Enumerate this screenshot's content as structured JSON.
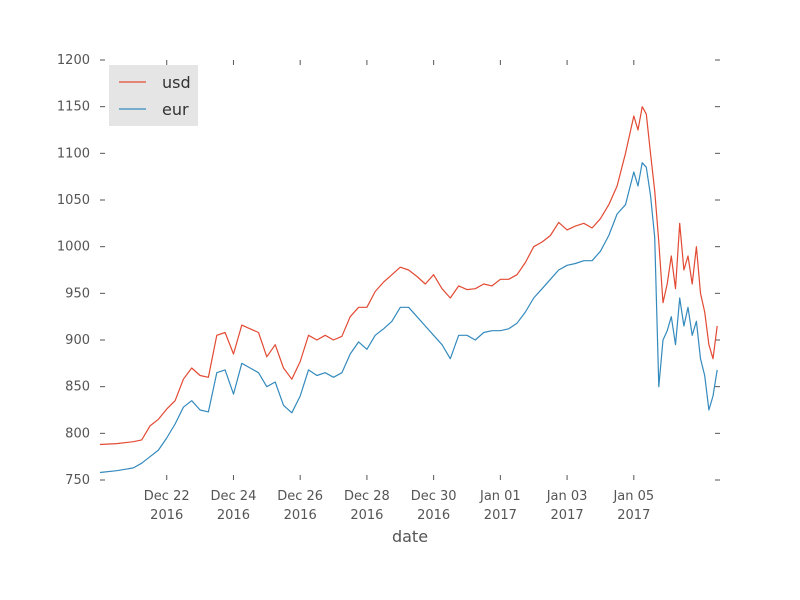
{
  "chart_data": {
    "type": "line",
    "title": "",
    "xlabel": "date",
    "ylabel": "",
    "x_range": [
      "2016-12-20",
      "2017-01-07T14:00"
    ],
    "ylim": [
      750,
      1200
    ],
    "yticks": [
      750,
      800,
      850,
      900,
      950,
      1000,
      1050,
      1100,
      1150,
      1200
    ],
    "xticks": [
      {
        "date": "2016-12-22",
        "label": "Dec 22",
        "sublabel": "2016"
      },
      {
        "date": "2016-12-24",
        "label": "Dec 24",
        "sublabel": "2016"
      },
      {
        "date": "2016-12-26",
        "label": "Dec 26",
        "sublabel": "2016"
      },
      {
        "date": "2016-12-28",
        "label": "Dec 28",
        "sublabel": "2016"
      },
      {
        "date": "2016-12-30",
        "label": "Dec 30",
        "sublabel": "2016"
      },
      {
        "date": "2017-01-01",
        "label": "Jan 01",
        "sublabel": "2017"
      },
      {
        "date": "2017-01-03",
        "label": "Jan 03",
        "sublabel": "2017"
      },
      {
        "date": "2017-01-05",
        "label": "Jan 05",
        "sublabel": "2017"
      }
    ],
    "grid": false,
    "legend_position": "top-left",
    "series": [
      {
        "name": "usd",
        "color": "#E24A33",
        "points": [
          [
            "2016-12-20T00:00",
            788
          ],
          [
            "2016-12-20T12:00",
            789
          ],
          [
            "2016-12-21T00:00",
            791
          ],
          [
            "2016-12-21T06:00",
            793
          ],
          [
            "2016-12-21T12:00",
            808
          ],
          [
            "2016-12-21T18:00",
            815
          ],
          [
            "2016-12-22T00:00",
            826
          ],
          [
            "2016-12-22T06:00",
            835
          ],
          [
            "2016-12-22T12:00",
            858
          ],
          [
            "2016-12-22T18:00",
            870
          ],
          [
            "2016-12-23T00:00",
            862
          ],
          [
            "2016-12-23T06:00",
            860
          ],
          [
            "2016-12-23T12:00",
            905
          ],
          [
            "2016-12-23T18:00",
            908
          ],
          [
            "2016-12-24T00:00",
            885
          ],
          [
            "2016-12-24T06:00",
            916
          ],
          [
            "2016-12-24T12:00",
            912
          ],
          [
            "2016-12-24T18:00",
            908
          ],
          [
            "2016-12-25T00:00",
            882
          ],
          [
            "2016-12-25T06:00",
            895
          ],
          [
            "2016-12-25T12:00",
            870
          ],
          [
            "2016-12-25T18:00",
            858
          ],
          [
            "2016-12-26T00:00",
            877
          ],
          [
            "2016-12-26T06:00",
            905
          ],
          [
            "2016-12-26T12:00",
            900
          ],
          [
            "2016-12-26T18:00",
            905
          ],
          [
            "2016-12-27T00:00",
            900
          ],
          [
            "2016-12-27T06:00",
            904
          ],
          [
            "2016-12-27T12:00",
            925
          ],
          [
            "2016-12-27T18:00",
            935
          ],
          [
            "2016-12-28T00:00",
            935
          ],
          [
            "2016-12-28T06:00",
            952
          ],
          [
            "2016-12-28T12:00",
            962
          ],
          [
            "2016-12-28T18:00",
            970
          ],
          [
            "2016-12-29T00:00",
            978
          ],
          [
            "2016-12-29T06:00",
            975
          ],
          [
            "2016-12-29T12:00",
            968
          ],
          [
            "2016-12-29T18:00",
            960
          ],
          [
            "2016-12-30T00:00",
            970
          ],
          [
            "2016-12-30T06:00",
            955
          ],
          [
            "2016-12-30T12:00",
            945
          ],
          [
            "2016-12-30T18:00",
            958
          ],
          [
            "2016-12-31T00:00",
            954
          ],
          [
            "2016-12-31T06:00",
            955
          ],
          [
            "2016-12-31T12:00",
            960
          ],
          [
            "2016-12-31T18:00",
            958
          ],
          [
            "2017-01-01T00:00",
            965
          ],
          [
            "2017-01-01T06:00",
            965
          ],
          [
            "2017-01-01T12:00",
            970
          ],
          [
            "2017-01-01T18:00",
            983
          ],
          [
            "2017-01-02T00:00",
            1000
          ],
          [
            "2017-01-02T06:00",
            1005
          ],
          [
            "2017-01-02T12:00",
            1012
          ],
          [
            "2017-01-02T18:00",
            1026
          ],
          [
            "2017-01-03T00:00",
            1018
          ],
          [
            "2017-01-03T06:00",
            1022
          ],
          [
            "2017-01-03T12:00",
            1025
          ],
          [
            "2017-01-03T18:00",
            1020
          ],
          [
            "2017-01-04T00:00",
            1030
          ],
          [
            "2017-01-04T06:00",
            1045
          ],
          [
            "2017-01-04T12:00",
            1065
          ],
          [
            "2017-01-04T18:00",
            1100
          ],
          [
            "2017-01-05T00:00",
            1140
          ],
          [
            "2017-01-05T03:00",
            1125
          ],
          [
            "2017-01-05T06:00",
            1150
          ],
          [
            "2017-01-05T09:00",
            1142
          ],
          [
            "2017-01-05T12:00",
            1100
          ],
          [
            "2017-01-05T15:00",
            1060
          ],
          [
            "2017-01-05T18:00",
            1005
          ],
          [
            "2017-01-05T21:00",
            940
          ],
          [
            "2017-01-06T00:00",
            960
          ],
          [
            "2017-01-06T03:00",
            990
          ],
          [
            "2017-01-06T06:00",
            955
          ],
          [
            "2017-01-06T09:00",
            1025
          ],
          [
            "2017-01-06T12:00",
            975
          ],
          [
            "2017-01-06T15:00",
            990
          ],
          [
            "2017-01-06T18:00",
            960
          ],
          [
            "2017-01-06T21:00",
            1000
          ],
          [
            "2017-01-07T00:00",
            950
          ],
          [
            "2017-01-07T03:00",
            930
          ],
          [
            "2017-01-07T06:00",
            895
          ],
          [
            "2017-01-07T09:00",
            880
          ],
          [
            "2017-01-07T12:00",
            915
          ]
        ]
      },
      {
        "name": "eur",
        "color": "#348ABD",
        "points": [
          [
            "2016-12-20T00:00",
            758
          ],
          [
            "2016-12-20T12:00",
            760
          ],
          [
            "2016-12-21T00:00",
            763
          ],
          [
            "2016-12-21T06:00",
            768
          ],
          [
            "2016-12-21T12:00",
            775
          ],
          [
            "2016-12-21T18:00",
            782
          ],
          [
            "2016-12-22T00:00",
            795
          ],
          [
            "2016-12-22T06:00",
            810
          ],
          [
            "2016-12-22T12:00",
            828
          ],
          [
            "2016-12-22T18:00",
            835
          ],
          [
            "2016-12-23T00:00",
            825
          ],
          [
            "2016-12-23T06:00",
            823
          ],
          [
            "2016-12-23T12:00",
            865
          ],
          [
            "2016-12-23T18:00",
            868
          ],
          [
            "2016-12-24T00:00",
            842
          ],
          [
            "2016-12-24T06:00",
            875
          ],
          [
            "2016-12-24T12:00",
            870
          ],
          [
            "2016-12-24T18:00",
            865
          ],
          [
            "2016-12-25T00:00",
            850
          ],
          [
            "2016-12-25T06:00",
            855
          ],
          [
            "2016-12-25T12:00",
            830
          ],
          [
            "2016-12-25T18:00",
            822
          ],
          [
            "2016-12-26T00:00",
            840
          ],
          [
            "2016-12-26T06:00",
            868
          ],
          [
            "2016-12-26T12:00",
            862
          ],
          [
            "2016-12-26T18:00",
            865
          ],
          [
            "2016-12-27T00:00",
            860
          ],
          [
            "2016-12-27T06:00",
            865
          ],
          [
            "2016-12-27T12:00",
            885
          ],
          [
            "2016-12-27T18:00",
            898
          ],
          [
            "2016-12-28T00:00",
            890
          ],
          [
            "2016-12-28T06:00",
            905
          ],
          [
            "2016-12-28T12:00",
            912
          ],
          [
            "2016-12-28T18:00",
            920
          ],
          [
            "2016-12-29T00:00",
            935
          ],
          [
            "2016-12-29T06:00",
            935
          ],
          [
            "2016-12-29T12:00",
            925
          ],
          [
            "2016-12-29T18:00",
            915
          ],
          [
            "2016-12-30T00:00",
            905
          ],
          [
            "2016-12-30T06:00",
            895
          ],
          [
            "2016-12-30T12:00",
            880
          ],
          [
            "2016-12-30T18:00",
            905
          ],
          [
            "2016-12-31T00:00",
            905
          ],
          [
            "2016-12-31T06:00",
            900
          ],
          [
            "2016-12-31T12:00",
            908
          ],
          [
            "2016-12-31T18:00",
            910
          ],
          [
            "2017-01-01T00:00",
            910
          ],
          [
            "2017-01-01T06:00",
            912
          ],
          [
            "2017-01-01T12:00",
            918
          ],
          [
            "2017-01-01T18:00",
            930
          ],
          [
            "2017-01-02T00:00",
            945
          ],
          [
            "2017-01-02T06:00",
            955
          ],
          [
            "2017-01-02T12:00",
            965
          ],
          [
            "2017-01-02T18:00",
            975
          ],
          [
            "2017-01-03T00:00",
            980
          ],
          [
            "2017-01-03T06:00",
            982
          ],
          [
            "2017-01-03T12:00",
            985
          ],
          [
            "2017-01-03T18:00",
            985
          ],
          [
            "2017-01-04T00:00",
            995
          ],
          [
            "2017-01-04T06:00",
            1012
          ],
          [
            "2017-01-04T12:00",
            1035
          ],
          [
            "2017-01-04T18:00",
            1045
          ],
          [
            "2017-01-05T00:00",
            1080
          ],
          [
            "2017-01-05T03:00",
            1065
          ],
          [
            "2017-01-05T06:00",
            1090
          ],
          [
            "2017-01-05T09:00",
            1085
          ],
          [
            "2017-01-05T12:00",
            1055
          ],
          [
            "2017-01-05T15:00",
            1010
          ],
          [
            "2017-01-05T18:00",
            850
          ],
          [
            "2017-01-05T21:00",
            900
          ],
          [
            "2017-01-06T00:00",
            910
          ],
          [
            "2017-01-06T03:00",
            925
          ],
          [
            "2017-01-06T06:00",
            895
          ],
          [
            "2017-01-06T09:00",
            945
          ],
          [
            "2017-01-06T12:00",
            915
          ],
          [
            "2017-01-06T15:00",
            935
          ],
          [
            "2017-01-06T18:00",
            905
          ],
          [
            "2017-01-06T21:00",
            920
          ],
          [
            "2017-01-07T00:00",
            880
          ],
          [
            "2017-01-07T03:00",
            862
          ],
          [
            "2017-01-07T06:00",
            825
          ],
          [
            "2017-01-07T09:00",
            840
          ],
          [
            "2017-01-07T12:00",
            868
          ]
        ]
      }
    ]
  }
}
